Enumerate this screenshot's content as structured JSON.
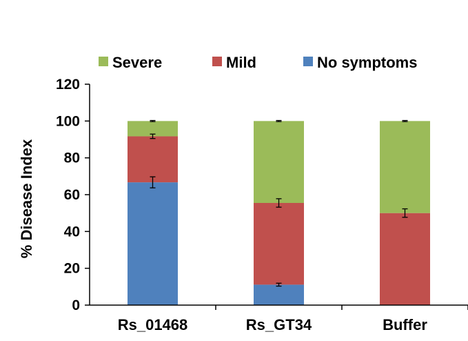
{
  "chart_data": {
    "type": "bar",
    "stacked": true,
    "title": "",
    "xlabel": "",
    "ylabel": "% Disease Index",
    "ylim": [
      0,
      120
    ],
    "yticks": [
      0,
      20,
      40,
      60,
      80,
      100,
      120
    ],
    "ytick_labels": [
      "0",
      "20",
      "40",
      "60",
      "80",
      "100",
      "120"
    ],
    "categories": [
      "Rs_01468",
      "Rs_GT34",
      "Buffer"
    ],
    "series": [
      {
        "name": "No symptoms",
        "color": "#4F81BD",
        "values": [
          66.7,
          11.1,
          0
        ],
        "errors": [
          3.0,
          0.8,
          0
        ]
      },
      {
        "name": "Mild",
        "color": "#C0504D",
        "values": [
          25.0,
          44.4,
          50.0
        ],
        "errors": [
          1.2,
          2.3,
          2.3
        ]
      },
      {
        "name": "Severe",
        "color": "#9BBB59",
        "values": [
          8.3,
          44.5,
          50.0
        ],
        "errors": [
          0.3,
          0.3,
          0.3
        ]
      }
    ],
    "legend": {
      "position": "top",
      "order": [
        "Severe",
        "Mild",
        "No symptoms"
      ]
    }
  }
}
